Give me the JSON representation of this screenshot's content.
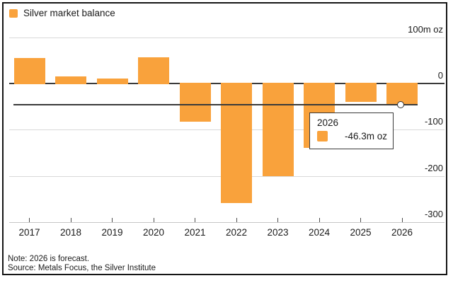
{
  "legend": {
    "label": "Silver market balance"
  },
  "colors": {
    "bar": "#F9A23C",
    "zero_line": "#3a3a3a",
    "grid": "#d9d9d9",
    "axis": "#c6c6c6",
    "tick": "#4d4d4d",
    "text": "#1a1a1a"
  },
  "chart_data": {
    "type": "bar",
    "title": "Silver market balance",
    "unit": "m oz",
    "categories": [
      "2017",
      "2018",
      "2019",
      "2020",
      "2021",
      "2022",
      "2023",
      "2024",
      "2025",
      "2026"
    ],
    "values": [
      55,
      16,
      11,
      56,
      -83,
      -258,
      -200,
      -139,
      -40,
      -46.3
    ],
    "ylim": [
      -300,
      100
    ],
    "y_ticks": [
      {
        "value": 100,
        "label": "100m oz"
      },
      {
        "value": 0,
        "label": "0"
      },
      {
        "value": -100,
        "label": "-100"
      },
      {
        "value": -200,
        "label": "-200"
      },
      {
        "value": -300,
        "label": "-300"
      }
    ],
    "grid": true,
    "legend_position": "top-left",
    "highlight": {
      "category": "2026",
      "value": -46.3,
      "label": "-46.3m oz"
    }
  },
  "tooltip": {
    "title": "2026",
    "value": "-46.3m oz"
  },
  "footer": {
    "note": "Note: 2026 is forecast.",
    "source": "Source: Metals Focus, the Silver Institute"
  }
}
